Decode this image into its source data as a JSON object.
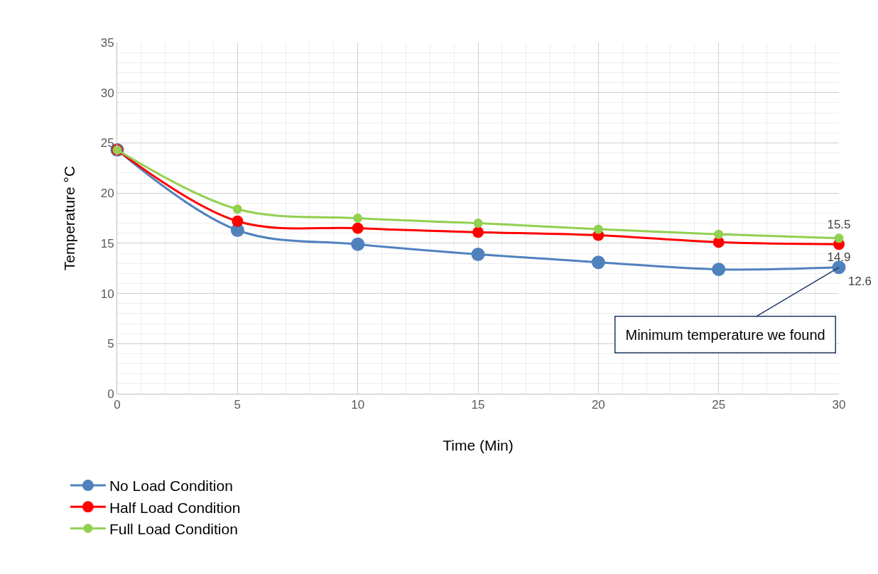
{
  "chart_data": {
    "type": "line",
    "xlabel": "Time (Min)",
    "ylabel": "Temperature °C",
    "x": [
      0,
      5,
      10,
      15,
      20,
      25,
      30
    ],
    "series": [
      {
        "name": "No Load Condition",
        "color": "#4f81bd",
        "values": [
          24.3,
          16.3,
          14.9,
          13.9,
          13.1,
          12.4,
          12.6
        ],
        "value_labels": [
          null,
          null,
          null,
          null,
          null,
          null,
          "12.6"
        ]
      },
      {
        "name": "Half Load Condition",
        "color": "#ff0000",
        "values": [
          24.3,
          17.2,
          16.5,
          16.1,
          15.8,
          15.1,
          14.9
        ],
        "value_labels": [
          null,
          null,
          null,
          null,
          null,
          null,
          "14.9"
        ]
      },
      {
        "name": "Full Load Condition",
        "color": "#92d050",
        "values": [
          24.3,
          18.4,
          17.5,
          17.0,
          16.4,
          15.9,
          15.5
        ],
        "value_labels": [
          null,
          null,
          null,
          null,
          null,
          null,
          "15.5"
        ]
      }
    ],
    "xlim": [
      0,
      30
    ],
    "xticks": [
      0,
      5,
      10,
      15,
      20,
      25,
      30
    ],
    "ylim": [
      0,
      35
    ],
    "yticks": [
      0,
      5,
      10,
      15,
      20,
      25,
      30,
      35
    ],
    "annotations": [
      {
        "text": "Minimum temperature we found",
        "x": 30,
        "y": 12.6
      }
    ],
    "grid": true,
    "legend": "bottom left",
    "marker": "circle",
    "line_style": "solid"
  }
}
